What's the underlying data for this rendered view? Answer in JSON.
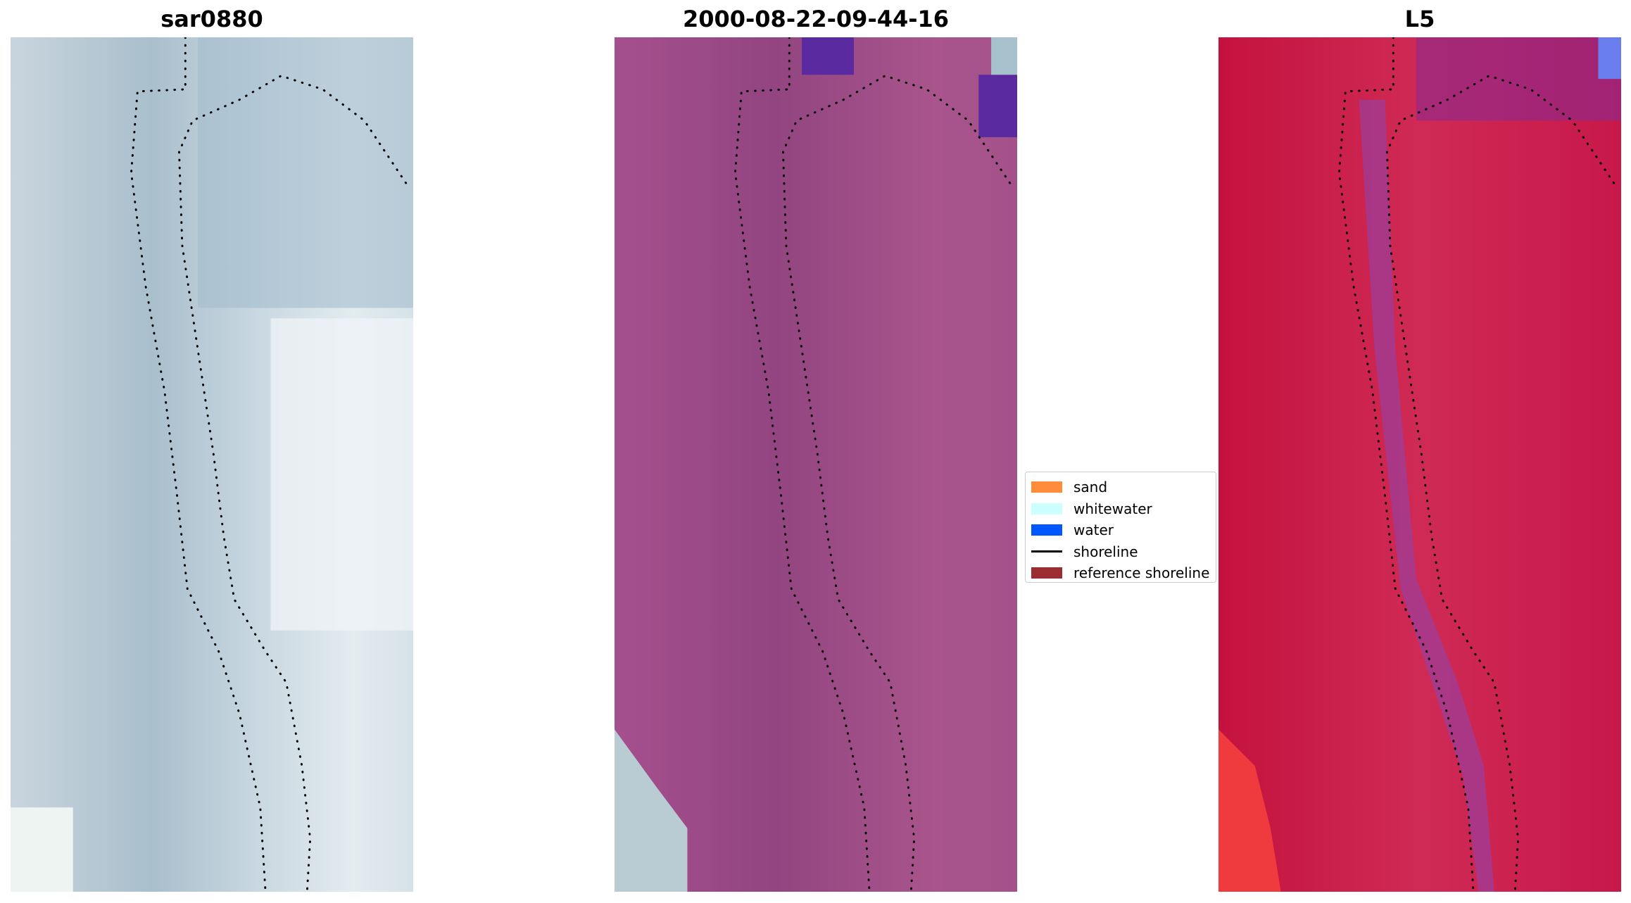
{
  "panels": [
    {
      "title": "sar0880"
    },
    {
      "title": "2000-08-22-09-44-16"
    },
    {
      "title": "L5"
    }
  ],
  "legend": {
    "items": [
      {
        "label": "sand",
        "color": "#ff8c3a",
        "marker": "patch"
      },
      {
        "label": "whitewater",
        "color": "#ccffff",
        "marker": "patch"
      },
      {
        "label": "water",
        "color": "#0057ff",
        "marker": "patch"
      },
      {
        "label": "shoreline",
        "color": "#000000",
        "marker": "line"
      },
      {
        "label": "reference shoreline",
        "color": "#9b2d30",
        "marker": "patch"
      }
    ]
  }
}
